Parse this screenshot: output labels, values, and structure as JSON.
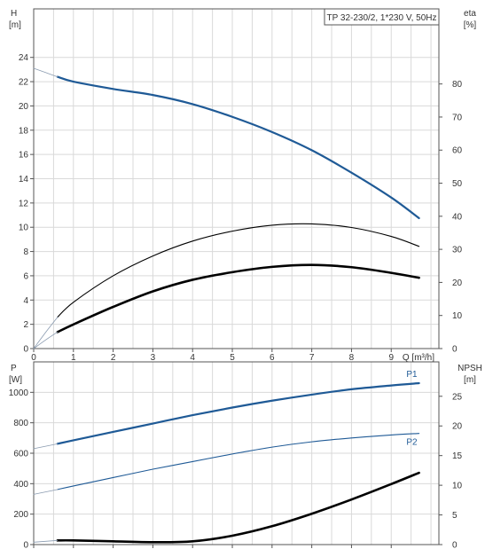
{
  "chart_data": [
    {
      "type": "line",
      "title": "TP 32-230/2, 1*230 V, 50Hz",
      "xlabel": "Q [m³/h]",
      "x_ticks": [
        0,
        1,
        2,
        3,
        4,
        5,
        6,
        7,
        8,
        9
      ],
      "xlim": [
        0,
        10.2
      ],
      "y_left": {
        "label_top": "H",
        "label_unit": "[m]",
        "ticks": [
          0,
          2,
          4,
          6,
          8,
          10,
          12,
          14,
          16,
          18,
          20,
          22,
          24
        ],
        "ylim": [
          0,
          28
        ]
      },
      "y_right": {
        "label_top": "eta",
        "label_unit": "[%]",
        "ticks": [
          0,
          10,
          20,
          30,
          40,
          50,
          60,
          70,
          80
        ],
        "ylim": [
          0,
          102.7
        ]
      },
      "grid": true,
      "series": [
        {
          "axis": "left",
          "color": "#1f5a96",
          "width": 2.2,
          "role": "main",
          "x": [
            0.6,
            1,
            2,
            3,
            4,
            5,
            6,
            7,
            8,
            9,
            9.7
          ],
          "y": [
            22.4,
            22.0,
            21.4,
            20.9,
            20.15,
            19.1,
            17.85,
            16.35,
            14.5,
            12.45,
            10.75
          ]
        },
        {
          "axis": "left",
          "color": "#8a9bb0",
          "width": 0.8,
          "role": "ext",
          "x": [
            0,
            0.3,
            0.6
          ],
          "y": [
            23.1,
            22.75,
            22.4
          ]
        },
        {
          "axis": "right",
          "color": "#000000",
          "width": 1.1,
          "role": "main",
          "x": [
            0.6,
            1,
            2,
            3,
            4,
            5,
            6,
            7,
            8,
            9,
            9.7
          ],
          "y": [
            9.5,
            14,
            22,
            28,
            32.5,
            35.5,
            37.3,
            37.7,
            36.6,
            33.9,
            30.9
          ]
        },
        {
          "axis": "right",
          "color": "#8a9bb0",
          "width": 0.8,
          "role": "ext",
          "x": [
            0,
            0.3,
            0.6
          ],
          "y": [
            0,
            4.9,
            9.5
          ]
        },
        {
          "axis": "right",
          "color": "#000000",
          "width": 2.6,
          "role": "main",
          "x": [
            0.6,
            1,
            2,
            3,
            4,
            5,
            6,
            7,
            8,
            9,
            9.7
          ],
          "y": [
            5,
            7.3,
            12.6,
            17.3,
            20.8,
            23.1,
            24.7,
            25.3,
            24.6,
            22.9,
            21.4
          ]
        },
        {
          "axis": "right",
          "color": "#8a9bb0",
          "width": 0.8,
          "role": "ext",
          "x": [
            0,
            0.3,
            0.6
          ],
          "y": [
            0,
            2.6,
            5
          ]
        }
      ]
    },
    {
      "type": "line",
      "xlim": [
        0,
        10.2
      ],
      "y_left": {
        "label_top": "P",
        "label_unit": "[W]",
        "ticks": [
          0,
          200,
          400,
          600,
          800,
          1000
        ],
        "ylim": [
          0,
          1200
        ]
      },
      "y_right": {
        "label_top": "NPSH",
        "label_unit": "[m]",
        "ticks": [
          0,
          5,
          10,
          15,
          20,
          25
        ],
        "ylim": [
          0,
          30.8
        ]
      },
      "grid": true,
      "series": [
        {
          "axis": "left",
          "color": "#1f5a96",
          "width": 2.2,
          "role": "main",
          "name": "P1",
          "x": [
            0.6,
            1,
            2,
            3,
            4,
            5,
            6,
            7,
            8,
            9,
            9.7
          ],
          "y": [
            662,
            685,
            740,
            795,
            850,
            900,
            945,
            985,
            1020,
            1045,
            1060
          ]
        },
        {
          "axis": "left",
          "color": "#8a9bb0",
          "width": 0.8,
          "role": "ext",
          "x": [
            0,
            0.3,
            0.6
          ],
          "y": [
            630,
            646,
            662
          ]
        },
        {
          "axis": "left",
          "color": "#1f5a96",
          "width": 1.1,
          "role": "main",
          "name": "P2",
          "x": [
            0.6,
            1,
            2,
            3,
            4,
            5,
            6,
            7,
            8,
            9,
            9.7
          ],
          "y": [
            362,
            385,
            440,
            495,
            545,
            595,
            640,
            675,
            700,
            720,
            730
          ]
        },
        {
          "axis": "left",
          "color": "#8a9bb0",
          "width": 0.8,
          "role": "ext",
          "x": [
            0,
            0.3,
            0.6
          ],
          "y": [
            330,
            346,
            362
          ]
        },
        {
          "axis": "right",
          "color": "#000000",
          "width": 2.6,
          "role": "main",
          "x": [
            0.6,
            1,
            2,
            3,
            4,
            5,
            6,
            7,
            8,
            9,
            9.7
          ],
          "y": [
            0.7,
            0.7,
            0.55,
            0.4,
            0.55,
            1.5,
            3.1,
            5.2,
            7.6,
            10.2,
            12.1
          ]
        },
        {
          "axis": "right",
          "color": "#8a9bb0",
          "width": 0.8,
          "role": "ext",
          "x": [
            0,
            0.3,
            0.6
          ],
          "y": [
            0.4,
            0.55,
            0.7
          ]
        }
      ]
    }
  ]
}
